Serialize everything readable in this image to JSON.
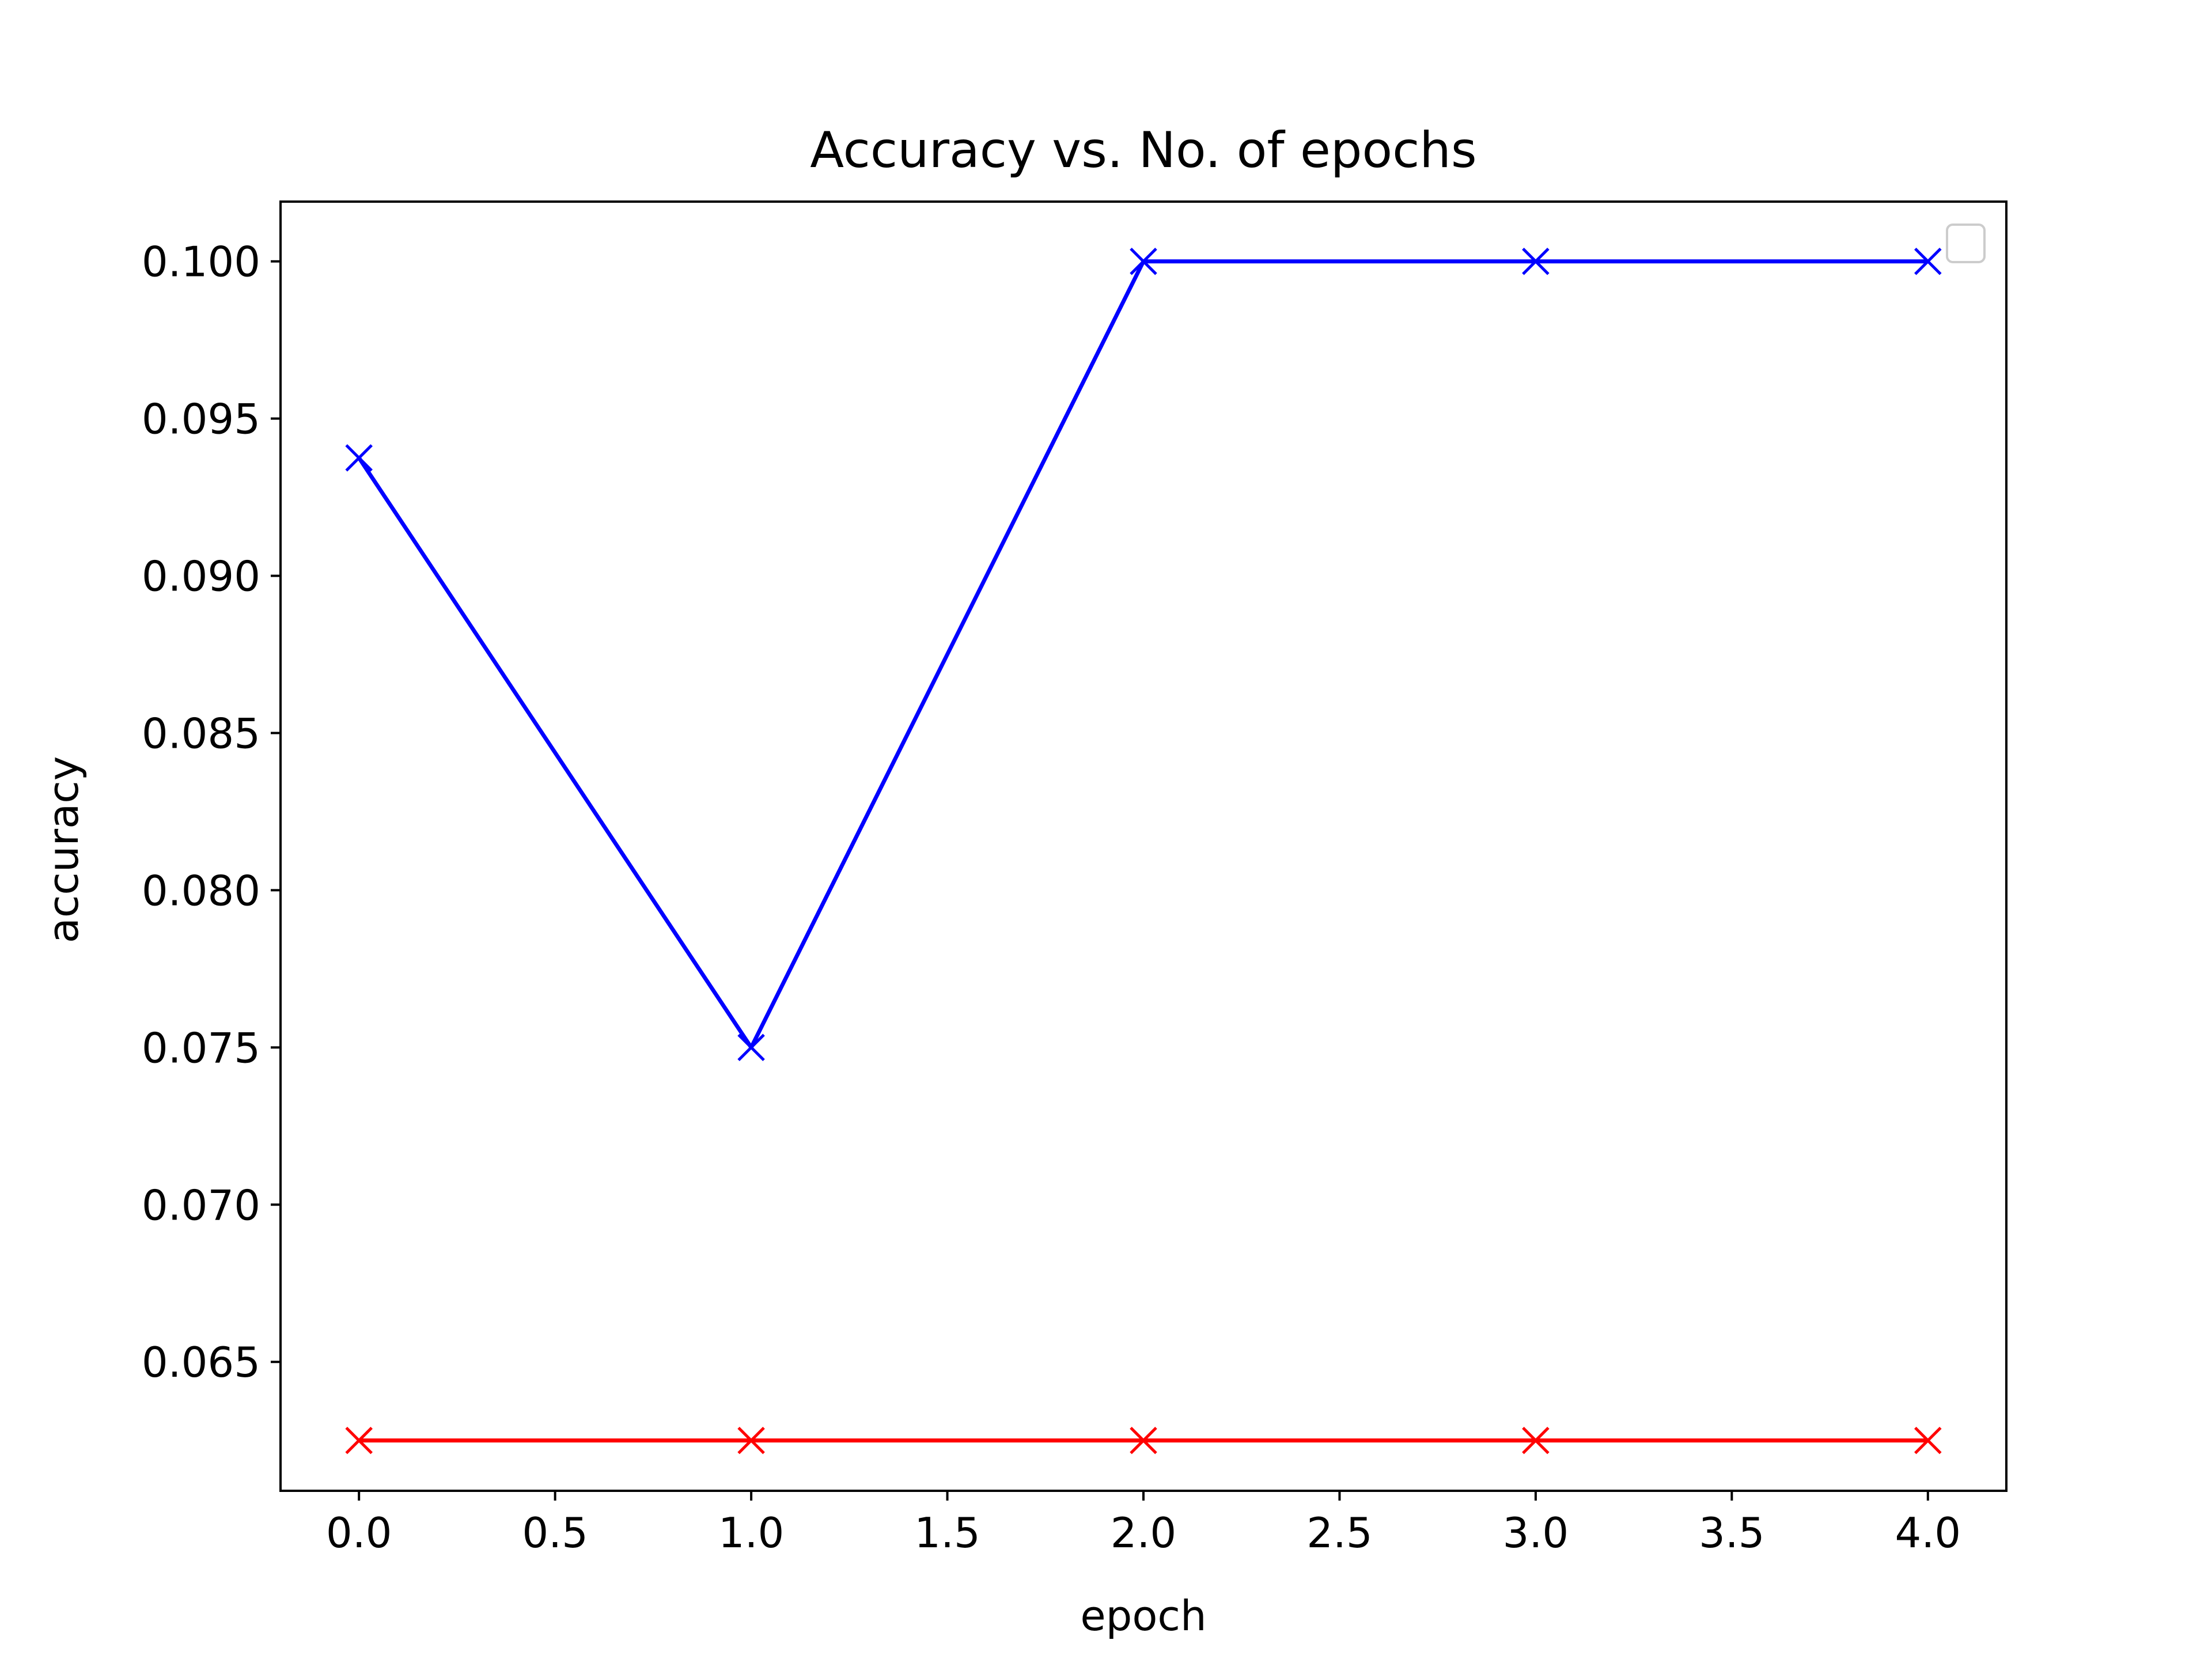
{
  "chart_data": {
    "type": "line",
    "title": "Accuracy vs. No. of epochs",
    "xlabel": "epoch",
    "ylabel": "accuracy",
    "xlim": [
      -0.2,
      4.2
    ],
    "ylim": [
      0.0609,
      0.1019
    ],
    "xticks": [
      0.0,
      0.5,
      1.0,
      1.5,
      2.0,
      2.5,
      3.0,
      3.5,
      4.0
    ],
    "xtick_labels": [
      "0.0",
      "0.5",
      "1.0",
      "1.5",
      "2.0",
      "2.5",
      "3.0",
      "3.5",
      "4.0"
    ],
    "yticks": [
      0.065,
      0.07,
      0.075,
      0.08,
      0.085,
      0.09,
      0.095,
      0.1
    ],
    "ytick_labels": [
      "0.065",
      "0.070",
      "0.075",
      "0.080",
      "0.085",
      "0.090",
      "0.095",
      "0.100"
    ],
    "grid": false,
    "legend": "top-right, empty",
    "x": [
      0,
      1,
      2,
      3,
      4
    ],
    "series": [
      {
        "values": [
          0.09375,
          0.075,
          0.1,
          0.1,
          0.1
        ],
        "color": "#0000ff",
        "marker": "x"
      },
      {
        "values": [
          0.0625,
          0.0625,
          0.0625,
          0.0625,
          0.0625
        ],
        "color": "#ff0000",
        "marker": "x"
      }
    ]
  }
}
